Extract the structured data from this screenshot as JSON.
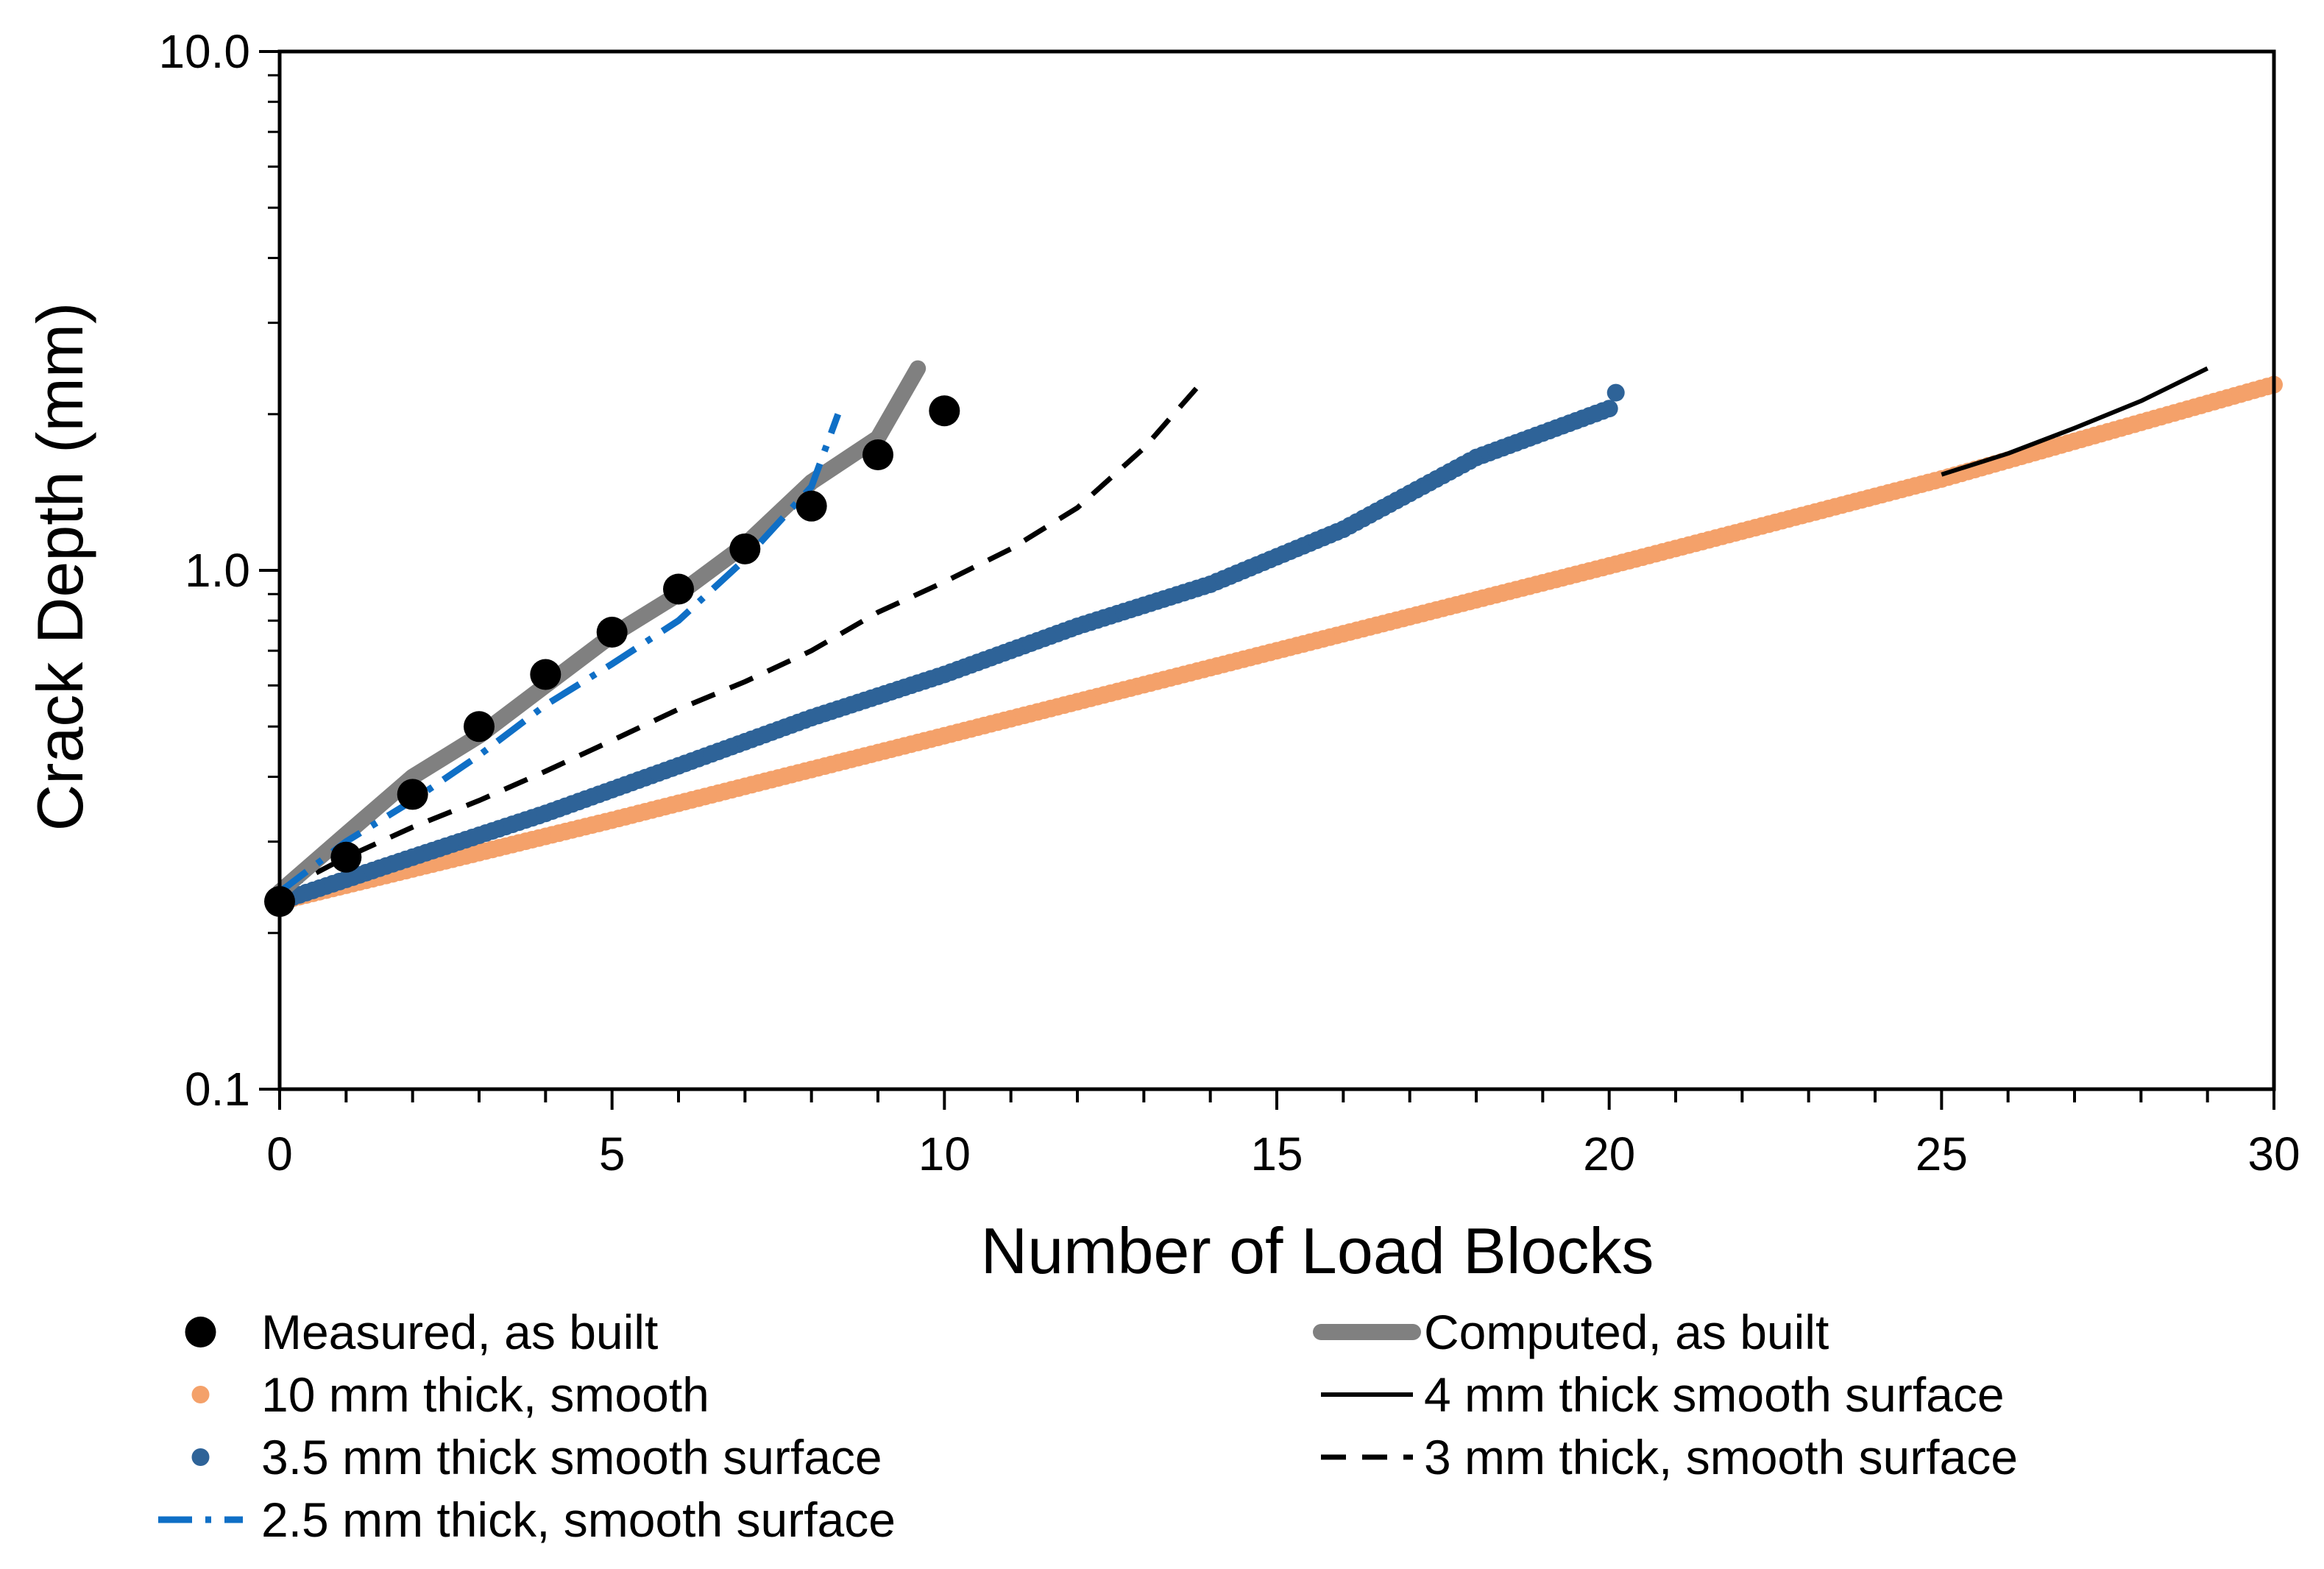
{
  "chart_data": {
    "type": "line",
    "title": "",
    "xlabel": "Number of Load Blocks",
    "ylabel": "Crack Depth (mm)",
    "xlim": [
      0,
      30
    ],
    "ylim": [
      0.1,
      10.0
    ],
    "yscale": "log",
    "x_ticks": [
      0,
      5,
      10,
      15,
      20,
      25,
      30
    ],
    "x_tick_labels": [
      "0",
      "5",
      "10",
      "15",
      "20",
      "25",
      "30"
    ],
    "y_ticks": [
      0.1,
      1.0,
      10.0
    ],
    "y_tick_labels": [
      "0.1",
      "1.0",
      "10.0"
    ],
    "grid": false,
    "legend_position": "bottom",
    "series": [
      {
        "name": "Measured, as built",
        "style": "markers",
        "color": "#000000",
        "x": [
          0,
          1,
          2,
          3,
          4,
          5,
          6,
          7,
          8,
          9,
          10
        ],
        "y": [
          0.23,
          0.28,
          0.37,
          0.5,
          0.63,
          0.76,
          0.92,
          1.1,
          1.33,
          1.67,
          2.03
        ]
      },
      {
        "name": "Computed, as built",
        "style": "thick-line",
        "color": "#808080",
        "x": [
          0,
          1,
          2,
          3,
          4,
          5,
          6,
          7,
          8,
          9,
          9.3,
          9.6
        ],
        "y": [
          0.24,
          0.31,
          0.4,
          0.48,
          0.6,
          0.75,
          0.9,
          1.12,
          1.48,
          1.8,
          2.1,
          2.45
        ]
      },
      {
        "name": "10 mm thick, smooth",
        "style": "dots",
        "color": "#F4A16A",
        "x": [
          0,
          5,
          10,
          15,
          20,
          25,
          30
        ],
        "y": [
          0.23,
          0.33,
          0.48,
          0.7,
          1.02,
          1.5,
          2.28
        ]
      },
      {
        "name": "4 mm thick smooth surface",
        "style": "thin-line",
        "color": "#000000",
        "x": [
          25,
          26,
          27,
          28,
          29
        ],
        "y": [
          1.53,
          1.68,
          1.88,
          2.12,
          2.45
        ]
      },
      {
        "name": "3.5 mm thick smooth surface",
        "style": "dots",
        "color": "#2E6398",
        "x": [
          0,
          2,
          4,
          6,
          8,
          10,
          12,
          14,
          16,
          18,
          20,
          20.1
        ],
        "y": [
          0.23,
          0.28,
          0.34,
          0.42,
          0.52,
          0.63,
          0.78,
          0.94,
          1.2,
          1.65,
          2.05,
          2.2
        ]
      },
      {
        "name": "3 mm thick, smooth surface",
        "style": "dashed",
        "color": "#000000",
        "x": [
          0,
          1,
          2,
          3,
          4,
          5,
          6,
          7,
          8,
          9,
          10,
          11,
          12,
          13,
          13.8
        ],
        "y": [
          0.24,
          0.28,
          0.32,
          0.36,
          0.41,
          0.47,
          0.54,
          0.61,
          0.7,
          0.83,
          0.95,
          1.1,
          1.32,
          1.72,
          2.25
        ]
      },
      {
        "name": "2.5 mm thick, smooth surface",
        "style": "dash-dot",
        "color": "#0F6FC6",
        "x": [
          0,
          1,
          2,
          3,
          4,
          5,
          6,
          7,
          8,
          8.4
        ],
        "y": [
          0.24,
          0.3,
          0.36,
          0.44,
          0.55,
          0.66,
          0.8,
          1.05,
          1.45,
          2.0
        ]
      }
    ]
  }
}
